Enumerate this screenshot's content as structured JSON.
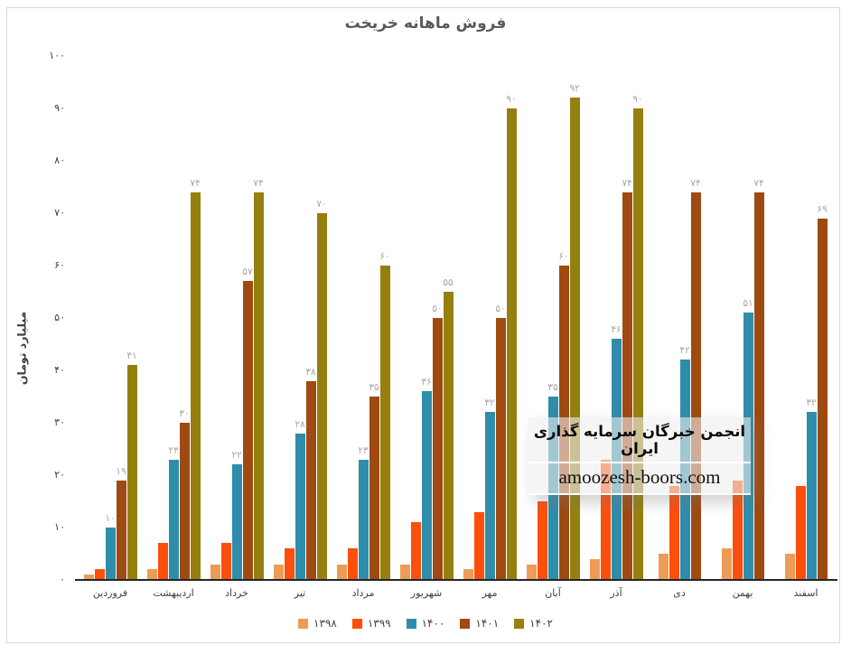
{
  "chart_data": {
    "type": "bar",
    "title": "فروش ماهانه خریخت",
    "xlabel": "",
    "ylabel": "میلیارد تومان",
    "ylim": [
      0,
      100
    ],
    "ytick_step": 10,
    "grid": false,
    "legend_position": "bottom",
    "numeral_system": "persian",
    "label_color": "#a6a6a6",
    "categories": [
      "فروردین",
      "اردیبهشت",
      "خرداد",
      "تیر",
      "مرداد",
      "شهریور",
      "مهر",
      "آبان",
      "آذر",
      "دی",
      "بهمن",
      "اسفند"
    ],
    "series": [
      {
        "name": "۱۳۹۸",
        "year": 1398,
        "color": "#ED9C55",
        "show_labels": false,
        "values": [
          1,
          2,
          3,
          3,
          3,
          3,
          2,
          3,
          4,
          5,
          6,
          5
        ]
      },
      {
        "name": "۱۳۹۹",
        "year": 1399,
        "color": "#FC4F0C",
        "show_labels": false,
        "values": [
          2,
          7,
          7,
          6,
          6,
          11,
          13,
          15,
          23,
          18,
          19,
          18
        ]
      },
      {
        "name": "۱۴۰۰",
        "year": 1400,
        "color": "#2E8DAB",
        "show_labels": true,
        "values": [
          10,
          23,
          22,
          28,
          23,
          36,
          32,
          35,
          46,
          42,
          51,
          32
        ]
      },
      {
        "name": "۱۴۰۱",
        "year": 1401,
        "color": "#9E4A11",
        "show_labels": true,
        "values": [
          19,
          30,
          57,
          38,
          35,
          50,
          50,
          60,
          74,
          74,
          74,
          69
        ]
      },
      {
        "name": "۱۴۰۲",
        "year": 1402,
        "color": "#95800F",
        "show_labels": true,
        "values": [
          41,
          74,
          74,
          70,
          60,
          55,
          90,
          92,
          90,
          null,
          null,
          null
        ]
      }
    ]
  },
  "watermark": {
    "line1": "انجمن خبرگان سرمایه گذاری ایران",
    "line2": "amoozesh-boors.com"
  }
}
